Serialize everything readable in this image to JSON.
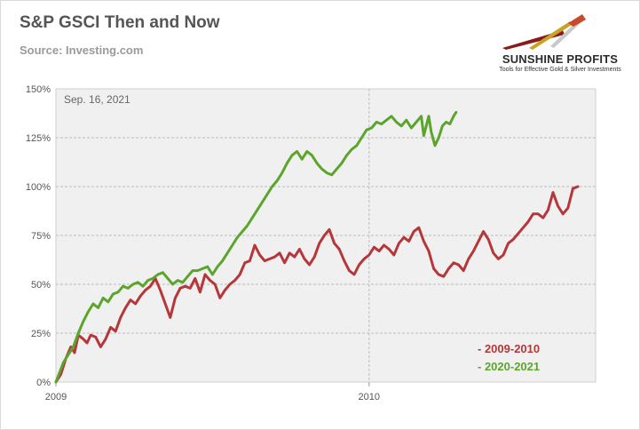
{
  "header": {
    "title": "S&P GSCI Then and Now",
    "subtitle": "Source: Investing.com"
  },
  "logo": {
    "name": "SUNSHINE PROFITS",
    "tagline": "Tools for Effective Gold & Silver Investments",
    "colors": [
      "#8b1a1a",
      "#c9a227",
      "#b0b0b0"
    ]
  },
  "chart_data": {
    "type": "line",
    "title": "S&P GSCI Then and Now",
    "annotation": "Sep. 16, 2021",
    "x_tick_labels": [
      "2009",
      "2010"
    ],
    "y_tick_labels": [
      "0%",
      "25%",
      "50%",
      "75%",
      "100%",
      "125%",
      "150%"
    ],
    "ylim": [
      0,
      150
    ],
    "x_unit": "trading days since start",
    "xlim": [
      0,
      420
    ],
    "x_year_marks": {
      "2009": 0,
      "2010": 252
    },
    "grid": true,
    "legend_position": "bottom-right",
    "series": [
      {
        "name": "- 2009-2010",
        "color": "#b5373a",
        "points": [
          [
            0,
            0
          ],
          [
            4,
            4
          ],
          [
            8,
            12
          ],
          [
            12,
            18
          ],
          [
            15,
            15
          ],
          [
            18,
            24
          ],
          [
            22,
            22
          ],
          [
            25,
            20
          ],
          [
            28,
            24
          ],
          [
            32,
            23
          ],
          [
            36,
            18
          ],
          [
            40,
            22
          ],
          [
            44,
            28
          ],
          [
            48,
            26
          ],
          [
            52,
            33
          ],
          [
            56,
            38
          ],
          [
            60,
            42
          ],
          [
            64,
            40
          ],
          [
            68,
            44
          ],
          [
            72,
            47
          ],
          [
            76,
            49
          ],
          [
            80,
            53
          ],
          [
            84,
            47
          ],
          [
            88,
            40
          ],
          [
            92,
            33
          ],
          [
            96,
            43
          ],
          [
            100,
            48
          ],
          [
            104,
            49
          ],
          [
            108,
            48
          ],
          [
            112,
            53
          ],
          [
            116,
            46
          ],
          [
            120,
            55
          ],
          [
            124,
            52
          ],
          [
            128,
            50
          ],
          [
            132,
            43
          ],
          [
            136,
            47
          ],
          [
            140,
            50
          ],
          [
            144,
            52
          ],
          [
            148,
            55
          ],
          [
            152,
            61
          ],
          [
            156,
            62
          ],
          [
            160,
            70
          ],
          [
            164,
            65
          ],
          [
            168,
            62
          ],
          [
            172,
            63
          ],
          [
            176,
            64
          ],
          [
            180,
            66
          ],
          [
            184,
            61
          ],
          [
            188,
            66
          ],
          [
            192,
            64
          ],
          [
            196,
            68
          ],
          [
            200,
            63
          ],
          [
            204,
            60
          ],
          [
            208,
            64
          ],
          [
            212,
            71
          ],
          [
            216,
            75
          ],
          [
            220,
            78
          ],
          [
            224,
            71
          ],
          [
            228,
            68
          ],
          [
            232,
            62
          ],
          [
            236,
            57
          ],
          [
            240,
            55
          ],
          [
            244,
            60
          ],
          [
            248,
            63
          ],
          [
            252,
            65
          ],
          [
            256,
            69
          ],
          [
            260,
            67
          ],
          [
            264,
            70
          ],
          [
            268,
            68
          ],
          [
            272,
            65
          ],
          [
            276,
            71
          ],
          [
            280,
            74
          ],
          [
            284,
            72
          ],
          [
            288,
            77
          ],
          [
            292,
            79
          ],
          [
            296,
            72
          ],
          [
            300,
            67
          ],
          [
            304,
            58
          ],
          [
            308,
            55
          ],
          [
            312,
            54
          ],
          [
            316,
            58
          ],
          [
            320,
            61
          ],
          [
            324,
            60
          ],
          [
            328,
            57
          ],
          [
            332,
            63
          ],
          [
            336,
            67
          ],
          [
            340,
            72
          ],
          [
            344,
            77
          ],
          [
            348,
            73
          ],
          [
            352,
            66
          ],
          [
            356,
            63
          ],
          [
            360,
            65
          ],
          [
            364,
            71
          ],
          [
            368,
            73
          ],
          [
            372,
            76
          ],
          [
            376,
            79
          ],
          [
            380,
            82
          ],
          [
            384,
            86
          ],
          [
            388,
            86
          ],
          [
            392,
            84
          ],
          [
            396,
            88
          ],
          [
            400,
            97
          ],
          [
            404,
            90
          ],
          [
            408,
            86
          ],
          [
            412,
            89
          ],
          [
            416,
            99
          ],
          [
            420,
            100
          ]
        ]
      },
      {
        "name": "- 2020-2021",
        "color": "#5ca52d",
        "points": [
          [
            0,
            0
          ],
          [
            3,
            5
          ],
          [
            6,
            10
          ],
          [
            10,
            14
          ],
          [
            14,
            18
          ],
          [
            18,
            25
          ],
          [
            22,
            31
          ],
          [
            26,
            36
          ],
          [
            30,
            40
          ],
          [
            34,
            38
          ],
          [
            38,
            43
          ],
          [
            42,
            41
          ],
          [
            46,
            45
          ],
          [
            50,
            46
          ],
          [
            54,
            49
          ],
          [
            58,
            48
          ],
          [
            62,
            50
          ],
          [
            66,
            51
          ],
          [
            70,
            49
          ],
          [
            74,
            52
          ],
          [
            78,
            53
          ],
          [
            82,
            55
          ],
          [
            86,
            56
          ],
          [
            90,
            53
          ],
          [
            94,
            50
          ],
          [
            98,
            52
          ],
          [
            102,
            51
          ],
          [
            106,
            54
          ],
          [
            110,
            57
          ],
          [
            114,
            57
          ],
          [
            118,
            58
          ],
          [
            122,
            59
          ],
          [
            126,
            55
          ],
          [
            130,
            59
          ],
          [
            134,
            62
          ],
          [
            138,
            66
          ],
          [
            142,
            70
          ],
          [
            146,
            74
          ],
          [
            150,
            77
          ],
          [
            154,
            80
          ],
          [
            158,
            84
          ],
          [
            162,
            88
          ],
          [
            166,
            92
          ],
          [
            170,
            96
          ],
          [
            174,
            100
          ],
          [
            178,
            103
          ],
          [
            182,
            107
          ],
          [
            186,
            112
          ],
          [
            190,
            116
          ],
          [
            194,
            118
          ],
          [
            198,
            114
          ],
          [
            202,
            118
          ],
          [
            206,
            116
          ],
          [
            210,
            112
          ],
          [
            214,
            109
          ],
          [
            218,
            107
          ],
          [
            222,
            106
          ],
          [
            226,
            109
          ],
          [
            230,
            112
          ],
          [
            234,
            116
          ],
          [
            238,
            119
          ],
          [
            242,
            121
          ],
          [
            246,
            125
          ],
          [
            250,
            129
          ],
          [
            254,
            130
          ],
          [
            258,
            133
          ],
          [
            262,
            132
          ],
          [
            266,
            134
          ],
          [
            270,
            136
          ],
          [
            274,
            133
          ],
          [
            278,
            131
          ],
          [
            282,
            134
          ],
          [
            286,
            130
          ],
          [
            290,
            133
          ],
          [
            294,
            136
          ],
          [
            296,
            126
          ],
          [
            298,
            131
          ],
          [
            300,
            136
          ],
          [
            302,
            128
          ],
          [
            305,
            121
          ],
          [
            308,
            125
          ],
          [
            311,
            131
          ],
          [
            314,
            133
          ],
          [
            317,
            132
          ],
          [
            320,
            136
          ],
          [
            322,
            138
          ]
        ]
      }
    ]
  }
}
